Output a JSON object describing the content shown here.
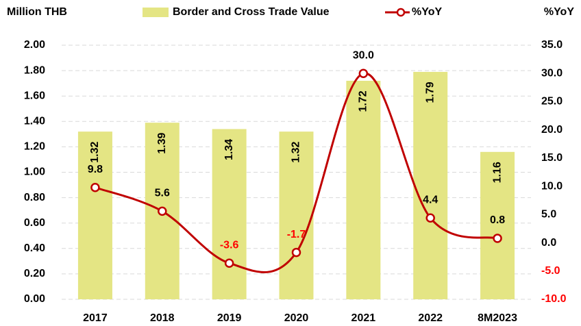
{
  "chart_data": {
    "type": "bar",
    "y_label": "Million THB",
    "y2_label": "%YoY",
    "categories": [
      "2017",
      "2018",
      "2019",
      "2020",
      "2021",
      "2022",
      "8M2023"
    ],
    "series": [
      {
        "name": "Border and Cross Trade Value",
        "type": "bar",
        "color": "#e4e584",
        "axis": "y",
        "values": [
          1.32,
          1.39,
          1.34,
          1.32,
          1.72,
          1.79,
          1.16
        ]
      },
      {
        "name": "%YoY",
        "type": "line",
        "color": "#c00000",
        "axis": "y2",
        "values": [
          9.8,
          5.6,
          -3.6,
          -1.7,
          30.0,
          4.4,
          0.8
        ],
        "value_labels": [
          "9.8",
          "5.6",
          "-3.6",
          "-1.7",
          "30.0",
          "4.4",
          "0.8"
        ]
      }
    ],
    "ylim": [
      0,
      2
    ],
    "yticks": [
      {
        "value": 0,
        "label": "0.00"
      },
      {
        "value": 0.2,
        "label": "0.20"
      },
      {
        "value": 0.4,
        "label": "0.40"
      },
      {
        "value": 0.6,
        "label": "0.60"
      },
      {
        "value": 0.8,
        "label": "0.80"
      },
      {
        "value": 1,
        "label": "1.00"
      },
      {
        "value": 1.2,
        "label": "1.20"
      },
      {
        "value": 1.4,
        "label": "1.40"
      },
      {
        "value": 1.6,
        "label": "1.60"
      },
      {
        "value": 1.8,
        "label": "1.80"
      },
      {
        "value": 2,
        "label": "2.00"
      }
    ],
    "y2lim": [
      -10,
      35
    ],
    "y2ticks": [
      {
        "value": -10,
        "label": "-10.0"
      },
      {
        "value": -5,
        "label": "-5.0"
      },
      {
        "value": 0,
        "label": "0.0"
      },
      {
        "value": 5,
        "label": "5.0"
      },
      {
        "value": 10,
        "label": "10.0"
      },
      {
        "value": 15,
        "label": "15.0"
      },
      {
        "value": 20,
        "label": "20.0"
      },
      {
        "value": 25,
        "label": "25.0"
      },
      {
        "value": 30,
        "label": "30.0"
      },
      {
        "value": 35,
        "label": "35.0"
      }
    ],
    "grid": true,
    "negative_color": "#ff0000"
  }
}
